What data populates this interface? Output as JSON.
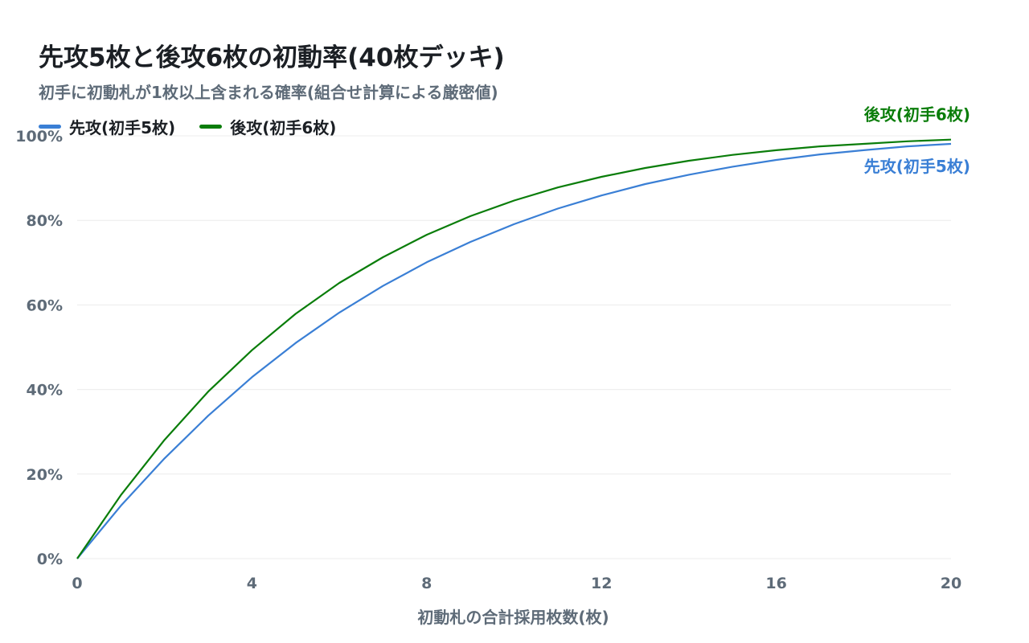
{
  "title": "先攻5枚と後攻6枚の初動率(40枚デッキ)",
  "subtitle": "初手に初動札が1枚以上含まれる確率(組合せ計算による厳密値)",
  "colors": {
    "first": "#3a7fd5",
    "second": "#0a7d0a",
    "grid": "#ececec",
    "text": "#5e6b78"
  },
  "legend": [
    {
      "label": "先攻(初手5枚)",
      "color": "#3a7fd5"
    },
    {
      "label": "後攻(初手6枚)",
      "color": "#0a7d0a"
    }
  ],
  "chart_data": {
    "type": "line",
    "title": "先攻5枚と後攻6枚の初動率(40枚デッキ)",
    "subtitle": "初手に初動札が1枚以上含まれる確率(組合せ計算による厳密値)",
    "xlabel": "初動札の合計採用枚数(枚)",
    "ylabel": "",
    "xlim": [
      0,
      20
    ],
    "ylim": [
      0,
      100
    ],
    "x_ticks": [
      "0",
      "4",
      "8",
      "12",
      "16",
      "20"
    ],
    "y_ticks": [
      "0%",
      "20%",
      "40%",
      "60%",
      "80%",
      "100%"
    ],
    "grid": "horizontal",
    "legend_position": "top-left",
    "x": [
      0,
      1,
      2,
      3,
      4,
      5,
      6,
      7,
      8,
      9,
      10,
      11,
      12,
      13,
      14,
      15,
      16,
      17,
      18,
      19,
      20
    ],
    "series": [
      {
        "name": "先攻(初手5枚)",
        "color": "#3a7fd5",
        "end_label": "先攻(初手5枚)",
        "values": [
          0,
          12.5,
          23.7,
          33.8,
          42.9,
          51.0,
          58.2,
          64.5,
          70.1,
          74.9,
          79.1,
          82.8,
          85.9,
          88.6,
          90.8,
          92.7,
          94.3,
          95.6,
          96.6,
          97.5,
          98.1
        ]
      },
      {
        "name": "後攻(初手6枚)",
        "color": "#0a7d0a",
        "end_label": "後攻(初手6枚)",
        "values": [
          0,
          15.0,
          28.1,
          39.5,
          49.3,
          57.9,
          65.2,
          71.3,
          76.6,
          81.0,
          84.7,
          87.8,
          90.3,
          92.4,
          94.1,
          95.5,
          96.6,
          97.5,
          98.1,
          98.7,
          99.1
        ]
      }
    ]
  }
}
